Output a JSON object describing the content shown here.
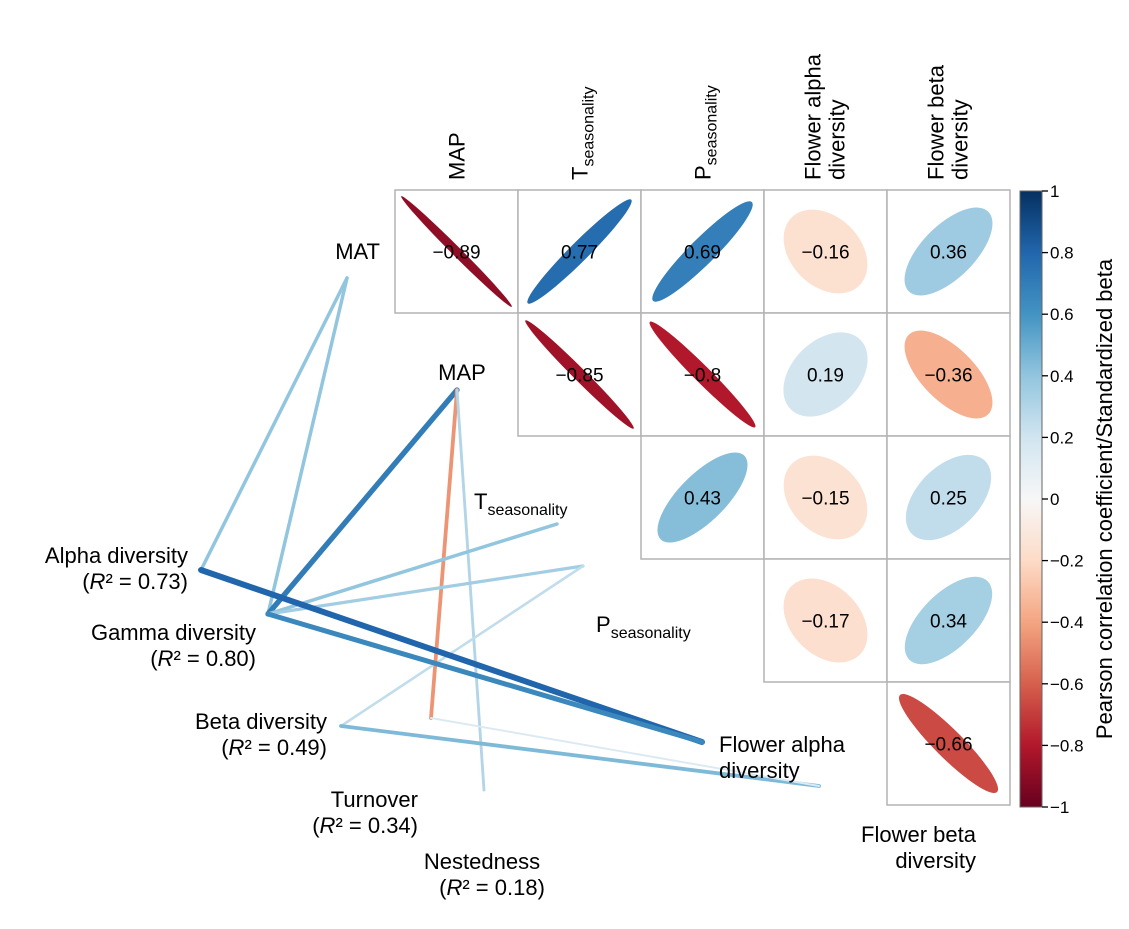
{
  "chart_data": {
    "type": "heatmap",
    "matrix": {
      "rows": [
        {
          "label_main": "MAT",
          "label_sub": "",
          "cells": [
            {
              "col": 0,
              "value": -0.89
            },
            {
              "col": 1,
              "value": 0.77
            },
            {
              "col": 2,
              "value": 0.69
            },
            {
              "col": 3,
              "value": -0.16
            },
            {
              "col": 4,
              "value": 0.36
            }
          ]
        },
        {
          "label_main": "MAP",
          "label_sub": "",
          "cells": [
            {
              "col": 1,
              "value": -0.85
            },
            {
              "col": 2,
              "value": -0.8
            },
            {
              "col": 3,
              "value": 0.19
            },
            {
              "col": 4,
              "value": -0.36
            }
          ]
        },
        {
          "label_main": "T",
          "label_sub": "seasonality",
          "cells": [
            {
              "col": 2,
              "value": 0.43
            },
            {
              "col": 3,
              "value": -0.15
            },
            {
              "col": 4,
              "value": 0.25
            }
          ]
        },
        {
          "label_main": "P",
          "label_sub": "seasonality",
          "cells": [
            {
              "col": 3,
              "value": -0.17
            },
            {
              "col": 4,
              "value": 0.34
            }
          ]
        },
        {
          "label_main": "Flower alpha",
          "label_sub": "diversity",
          "cells": [
            {
              "col": 4,
              "value": -0.66
            }
          ]
        }
      ],
      "columns": [
        {
          "line1": "MAP",
          "line2": "",
          "sub": ""
        },
        {
          "line1": "T",
          "line2": "",
          "sub": "seasonality"
        },
        {
          "line1": "P",
          "line2": "",
          "sub": "seasonality"
        },
        {
          "line1": "Flower alpha",
          "line2": "diversity",
          "sub": ""
        },
        {
          "line1": "Flower beta",
          "line2": "diversity",
          "sub": ""
        }
      ]
    },
    "colorbar": {
      "label": "Pearson correlation coefficient/Standardized beta",
      "ticks": [
        "1",
        "0.8",
        "0.6",
        "0.4",
        "0.2",
        "0",
        "−0.2",
        "−0.4",
        "−0.6",
        "−0.8",
        "−1"
      ],
      "range": [
        -1,
        1
      ],
      "colors": {
        "neg": "#67001f",
        "mid": "#f7f7f7",
        "pos": "#053061"
      }
    },
    "network": {
      "nodes": {
        "MAT": {
          "name": "MAT",
          "r2": ""
        },
        "MAP": {
          "name": "MAP",
          "r2": ""
        },
        "Tseas": {
          "name": "T",
          "sub": "seasonality",
          "r2": ""
        },
        "Pseas": {
          "name": "P",
          "sub": "seasonality",
          "r2": ""
        },
        "Alpha": {
          "name": "Alpha diversity",
          "r2": "0.73"
        },
        "Gamma": {
          "name": "Gamma diversity",
          "r2": "0.80"
        },
        "Beta": {
          "name": "Beta diversity",
          "r2": "0.49"
        },
        "Turnover": {
          "name": "Turnover",
          "r2": "0.34"
        },
        "Nestedness": {
          "name": "Nestedness",
          "r2": "0.18"
        },
        "FlowerAlpha": {
          "name": "Flower alpha",
          "name2": "diversity",
          "r2": ""
        },
        "FlowerBeta": {
          "name": "Flower beta",
          "name2": "diversity",
          "r2": ""
        }
      },
      "r2_prefix": "R",
      "r2_suffix": "² = ",
      "paths": [
        {
          "from": "MAT",
          "to": "Alpha",
          "value": 0.4
        },
        {
          "from": "MAT",
          "to": "Gamma",
          "value": 0.4
        },
        {
          "from": "MAP",
          "to": "Gamma",
          "value": 0.7
        },
        {
          "from": "MAP",
          "to": "Turnover",
          "value": -0.45
        },
        {
          "from": "MAP",
          "to": "Nestedness",
          "value": 0.3
        },
        {
          "from": "Tseas",
          "to": "Gamma",
          "value": 0.4
        },
        {
          "from": "Pseas",
          "to": "Gamma",
          "value": 0.35
        },
        {
          "from": "Pseas",
          "to": "Beta",
          "value": 0.25
        },
        {
          "from": "Alpha",
          "to": "FlowerAlpha",
          "value": 0.8
        },
        {
          "from": "Gamma",
          "to": "FlowerAlpha",
          "value": 0.65
        },
        {
          "from": "Beta",
          "to": "FlowerBeta",
          "value": 0.45
        },
        {
          "from": "Turnover",
          "to": "FlowerBeta",
          "value": 0.15
        }
      ]
    }
  }
}
